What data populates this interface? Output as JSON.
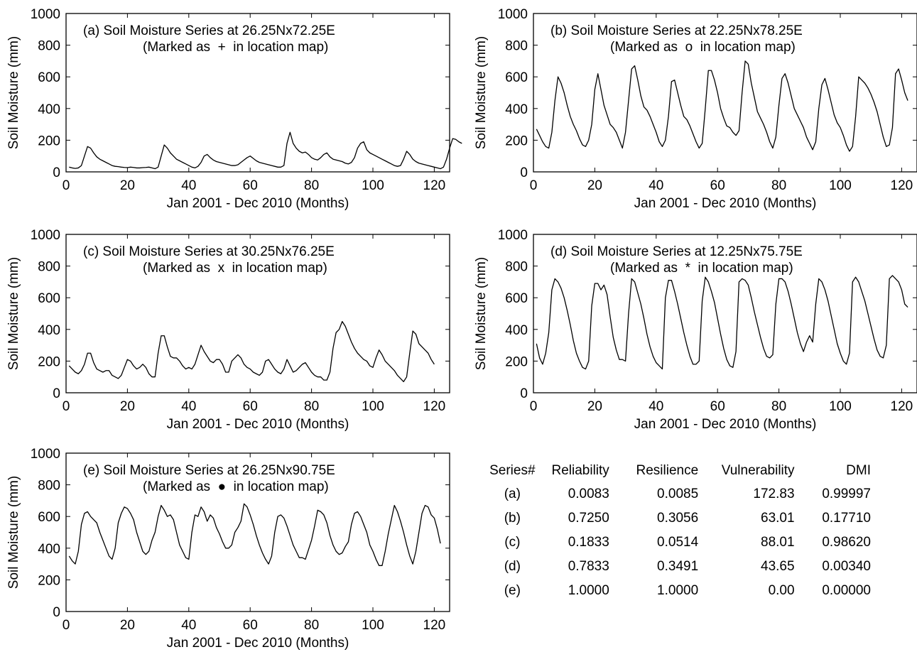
{
  "chart_data": [
    {
      "type": "line",
      "panel": "a",
      "title_line1": "(a) Soil Moisture Series at 26.25Nx72.25E",
      "title_line2_pre": "(Marked as",
      "title_symbol": "+",
      "title_line2_post": "in location map)",
      "xlabel": "Jan 2001 - Dec 2010 (Months)",
      "ylabel": "Soil Moisture (mm)",
      "xlim": [
        0,
        125
      ],
      "ylim": [
        0,
        1000
      ],
      "xticks": [
        0,
        20,
        40,
        60,
        80,
        100,
        120
      ],
      "yticks": [
        0,
        200,
        400,
        600,
        800,
        1000
      ],
      "x_start": 1,
      "values": [
        30,
        25,
        22,
        25,
        40,
        100,
        160,
        150,
        120,
        95,
        80,
        70,
        60,
        50,
        40,
        35,
        33,
        30,
        28,
        27,
        30,
        28,
        25,
        25,
        27,
        28,
        30,
        25,
        20,
        30,
        100,
        170,
        150,
        120,
        100,
        80,
        70,
        60,
        50,
        40,
        30,
        25,
        35,
        60,
        100,
        110,
        90,
        75,
        65,
        60,
        55,
        50,
        45,
        40,
        40,
        45,
        60,
        75,
        90,
        100,
        85,
        70,
        60,
        55,
        50,
        45,
        40,
        35,
        30,
        30,
        40,
        180,
        250,
        180,
        150,
        130,
        120,
        125,
        110,
        90,
        80,
        75,
        90,
        110,
        120,
        95,
        80,
        75,
        70,
        65,
        55,
        50,
        60,
        90,
        150,
        180,
        190,
        140,
        120,
        110,
        100,
        90,
        80,
        70,
        60,
        50,
        40,
        35,
        40,
        80,
        130,
        110,
        80,
        65,
        55,
        50,
        45,
        40,
        35,
        30,
        25,
        20,
        30,
        80,
        150,
        210,
        205,
        190,
        180
      ]
    },
    {
      "type": "line",
      "panel": "b",
      "title_line1": "(b) Soil Moisture Series at 22.25Nx78.25E",
      "title_line2_pre": "(Marked as",
      "title_symbol": "o",
      "title_line2_post": "in location map)",
      "xlabel": "Jan 2001 - Dec 2010 (Months)",
      "ylabel": "Soil Moisture (mm)",
      "xlim": [
        0,
        125
      ],
      "ylim": [
        0,
        1000
      ],
      "xticks": [
        0,
        20,
        40,
        60,
        80,
        100,
        120
      ],
      "yticks": [
        0,
        200,
        400,
        600,
        800,
        1000
      ],
      "x_start": 1,
      "values": [
        270,
        230,
        190,
        160,
        150,
        250,
        450,
        600,
        560,
        500,
        420,
        350,
        300,
        260,
        210,
        170,
        160,
        200,
        300,
        520,
        620,
        520,
        420,
        360,
        300,
        280,
        250,
        200,
        150,
        250,
        450,
        650,
        670,
        580,
        480,
        410,
        390,
        350,
        300,
        250,
        190,
        160,
        200,
        350,
        570,
        580,
        500,
        420,
        350,
        330,
        290,
        240,
        190,
        150,
        180,
        400,
        640,
        640,
        580,
        500,
        400,
        340,
        290,
        280,
        250,
        230,
        260,
        500,
        700,
        680,
        560,
        470,
        380,
        340,
        300,
        250,
        190,
        150,
        220,
        420,
        590,
        620,
        560,
        480,
        400,
        360,
        320,
        280,
        220,
        180,
        140,
        190,
        400,
        550,
        590,
        520,
        440,
        360,
        310,
        280,
        230,
        170,
        130,
        160,
        350,
        600,
        580,
        560,
        530,
        490,
        440,
        380,
        300,
        220,
        160,
        170,
        280,
        620,
        650,
        580,
        500,
        450
      ]
    },
    {
      "type": "line",
      "panel": "c",
      "title_line1": "(c) Soil Moisture Series at 30.25Nx76.25E",
      "title_line2_pre": "(Marked as",
      "title_symbol": "x",
      "title_line2_post": "in location map)",
      "xlabel": "Jan 2001 - Dec 2010 (Months)",
      "ylabel": "Soil Moisture (mm)",
      "xlim": [
        0,
        125
      ],
      "ylim": [
        0,
        1000
      ],
      "xticks": [
        0,
        20,
        40,
        60,
        80,
        100,
        120
      ],
      "yticks": [
        0,
        200,
        400,
        600,
        800,
        1000
      ],
      "x_start": 1,
      "values": [
        170,
        150,
        130,
        120,
        140,
        180,
        250,
        250,
        190,
        150,
        140,
        130,
        140,
        140,
        110,
        100,
        90,
        110,
        160,
        210,
        200,
        170,
        150,
        160,
        180,
        160,
        120,
        100,
        100,
        250,
        360,
        360,
        290,
        230,
        220,
        220,
        200,
        170,
        150,
        160,
        150,
        180,
        240,
        300,
        260,
        230,
        200,
        190,
        210,
        210,
        180,
        130,
        130,
        200,
        220,
        240,
        220,
        180,
        160,
        150,
        130,
        120,
        110,
        130,
        200,
        210,
        180,
        150,
        130,
        120,
        150,
        210,
        170,
        130,
        140,
        160,
        180,
        190,
        160,
        130,
        110,
        100,
        100,
        80,
        80,
        130,
        280,
        380,
        400,
        450,
        420,
        370,
        320,
        280,
        250,
        230,
        210,
        200,
        170,
        160,
        220,
        270,
        240,
        200,
        180,
        160,
        140,
        110,
        90,
        70,
        100,
        250,
        390,
        370,
        310,
        290,
        270,
        250,
        210,
        180
      ]
    },
    {
      "type": "line",
      "panel": "d",
      "title_line1": "(d) Soil Moisture Series at 12.25Nx75.75E",
      "title_line2_pre": "(Marked as",
      "title_symbol": "*",
      "title_line2_post": "in location map)",
      "xlabel": "Jan 2001 - Dec 2010 (Months)",
      "ylabel": "Soil Moisture (mm)",
      "xlim": [
        0,
        125
      ],
      "ylim": [
        0,
        1000
      ],
      "xticks": [
        0,
        20,
        40,
        60,
        80,
        100,
        120
      ],
      "yticks": [
        0,
        200,
        400,
        600,
        800,
        1000
      ],
      "x_start": 1,
      "values": [
        310,
        220,
        180,
        250,
        380,
        650,
        720,
        700,
        660,
        600,
        520,
        430,
        330,
        250,
        200,
        160,
        150,
        200,
        550,
        690,
        690,
        650,
        680,
        620,
        480,
        350,
        270,
        210,
        210,
        200,
        500,
        720,
        700,
        630,
        560,
        470,
        370,
        290,
        230,
        190,
        170,
        150,
        600,
        710,
        710,
        640,
        560,
        470,
        380,
        300,
        230,
        180,
        180,
        200,
        580,
        730,
        700,
        640,
        570,
        470,
        370,
        280,
        210,
        170,
        160,
        260,
        700,
        720,
        710,
        680,
        600,
        510,
        430,
        350,
        280,
        230,
        220,
        240,
        560,
        720,
        720,
        700,
        640,
        560,
        470,
        380,
        310,
        260,
        320,
        360,
        320,
        560,
        720,
        700,
        650,
        580,
        490,
        400,
        310,
        250,
        200,
        180,
        250,
        700,
        730,
        700,
        640,
        580,
        500,
        420,
        340,
        270,
        230,
        220,
        300,
        720,
        740,
        720,
        700,
        650,
        560,
        540
      ]
    },
    {
      "type": "line",
      "panel": "e",
      "title_line1": "(e) Soil Moisture Series at 26.25Nx90.75E",
      "title_line2_pre": "(Marked as",
      "title_symbol": "●",
      "title_line2_post": "in location map)",
      "xlabel": "Jan 2001 - Dec 2010 (Months)",
      "ylabel": "Soil Moisture (mm)",
      "xlim": [
        0,
        125
      ],
      "ylim": [
        0,
        1000
      ],
      "xticks": [
        0,
        20,
        40,
        60,
        80,
        100,
        120
      ],
      "yticks": [
        0,
        200,
        400,
        600,
        800,
        1000
      ],
      "x_start": 1,
      "values": [
        350,
        320,
        300,
        380,
        550,
        620,
        630,
        600,
        580,
        560,
        500,
        450,
        400,
        350,
        330,
        400,
        560,
        620,
        660,
        650,
        620,
        580,
        500,
        440,
        380,
        360,
        380,
        450,
        500,
        600,
        670,
        640,
        600,
        610,
        580,
        500,
        420,
        380,
        340,
        330,
        500,
        610,
        600,
        660,
        630,
        570,
        610,
        590,
        530,
        490,
        440,
        400,
        400,
        420,
        500,
        530,
        570,
        680,
        660,
        610,
        550,
        480,
        420,
        370,
        330,
        300,
        350,
        500,
        600,
        610,
        590,
        540,
        480,
        420,
        380,
        340,
        340,
        330,
        390,
        450,
        540,
        640,
        630,
        610,
        560,
        480,
        420,
        380,
        360,
        370,
        410,
        440,
        550,
        620,
        630,
        600,
        550,
        500,
        420,
        380,
        330,
        290,
        290,
        380,
        490,
        580,
        670,
        630,
        570,
        500,
        420,
        350,
        300,
        380,
        500,
        620,
        670,
        660,
        610,
        590,
        520,
        430
      ]
    }
  ],
  "table": {
    "headers": [
      "Series#",
      "Reliability",
      "Resilience",
      "Vulnerability",
      "DMI"
    ],
    "rows": [
      [
        "(a)",
        "0.0083",
        "0.0085",
        "172.83",
        "0.99997"
      ],
      [
        "(b)",
        "0.7250",
        "0.3056",
        "63.01",
        "0.17710"
      ],
      [
        "(c)",
        "0.1833",
        "0.0514",
        "88.01",
        "0.98620"
      ],
      [
        "(d)",
        "0.7833",
        "0.3491",
        "43.65",
        "0.00340"
      ],
      [
        "(e)",
        "1.0000",
        "1.0000",
        "0.00",
        "0.00000"
      ]
    ]
  }
}
